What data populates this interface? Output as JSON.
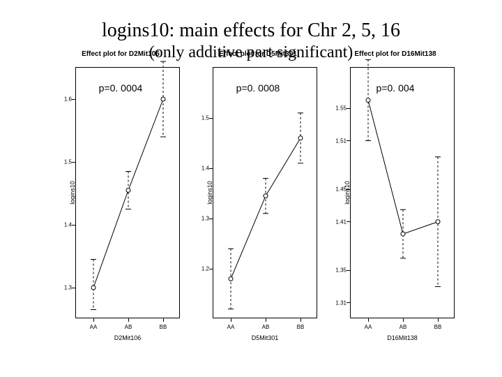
{
  "title": "logins10: main effects for Chr 2, 5, 16",
  "subtitle": "(only additive part significant)",
  "global": {
    "background_color": "#ffffff",
    "text_color": "#000000",
    "title_fontsize": 28,
    "subtitle_fontsize": 24,
    "pvalue_fontsize": 14,
    "panel_title_fontsize": 10,
    "axis_label_fontsize": 9,
    "tick_label_fontsize": 8,
    "font_family_title": "Times New Roman",
    "font_family_labels": "Arial"
  },
  "panels": [
    {
      "id": "chr2",
      "panel_title": "Effect plot for D2Mit106",
      "pvalue": "p=0. 0004",
      "ylab": "logins10",
      "xlab": "D2Mit106",
      "type": "line-with-ci",
      "x_categories": [
        "AA",
        "AB",
        "BB"
      ],
      "ylim": [
        1.25,
        1.65
      ],
      "yticks": [
        1.3,
        1.4,
        1.5,
        1.6
      ],
      "ytick_labels": [
        "1.3",
        "1.4",
        "1.5",
        "1.6"
      ],
      "points": [
        {
          "x": "AA",
          "mean": 1.3,
          "lo": 1.265,
          "hi": 1.345
        },
        {
          "x": "AB",
          "mean": 1.455,
          "lo": 1.425,
          "hi": 1.485
        },
        {
          "x": "BB",
          "mean": 1.6,
          "lo": 1.54,
          "hi": 1.66
        }
      ],
      "line_color": "#000000",
      "marker": "circle-open",
      "marker_size": 5,
      "line_width": 1,
      "ci_cap_width": 8
    },
    {
      "id": "chr5",
      "panel_title": "Effect plot for D5Mit301",
      "pvalue": "p=0. 0008",
      "ylab": "logins10",
      "xlab": "D5Mit301",
      "type": "line-with-ci",
      "x_categories": [
        "AA",
        "AB",
        "BB"
      ],
      "ylim": [
        1.1,
        1.6
      ],
      "yticks": [
        1.2,
        1.3,
        1.4,
        1.5
      ],
      "ytick_labels": [
        "1.2",
        "1.3",
        "1.4",
        "1.5"
      ],
      "points": [
        {
          "x": "AA",
          "mean": 1.18,
          "lo": 1.12,
          "hi": 1.24
        },
        {
          "x": "AB",
          "mean": 1.345,
          "lo": 1.31,
          "hi": 1.38
        },
        {
          "x": "BB",
          "mean": 1.46,
          "lo": 1.41,
          "hi": 1.51
        }
      ],
      "line_color": "#000000",
      "marker": "circle-open",
      "marker_size": 5,
      "line_width": 1,
      "ci_cap_width": 8
    },
    {
      "id": "chr16",
      "panel_title": "Effect plot for D16Mit138",
      "pvalue": "p=0. 004",
      "ylab": "logins10",
      "xlab": "D16Mit138",
      "type": "line-with-ci",
      "x_categories": [
        "AA",
        "AB",
        "BB"
      ],
      "ylim": [
        1.29,
        1.6
      ],
      "yticks": [
        1.31,
        1.35,
        1.41,
        1.45,
        1.51,
        1.55
      ],
      "ytick_labels": [
        "1.31",
        "1.35",
        "1.41",
        "1.45",
        "1.51",
        "1.55"
      ],
      "points": [
        {
          "x": "AA",
          "mean": 1.56,
          "lo": 1.51,
          "hi": 1.61
        },
        {
          "x": "AB",
          "mean": 1.395,
          "lo": 1.365,
          "hi": 1.425
        },
        {
          "x": "BB",
          "mean": 1.41,
          "lo": 1.33,
          "hi": 1.49
        }
      ],
      "line_color": "#000000",
      "marker": "circle-open",
      "marker_size": 5,
      "line_width": 1,
      "ci_cap_width": 8
    }
  ]
}
